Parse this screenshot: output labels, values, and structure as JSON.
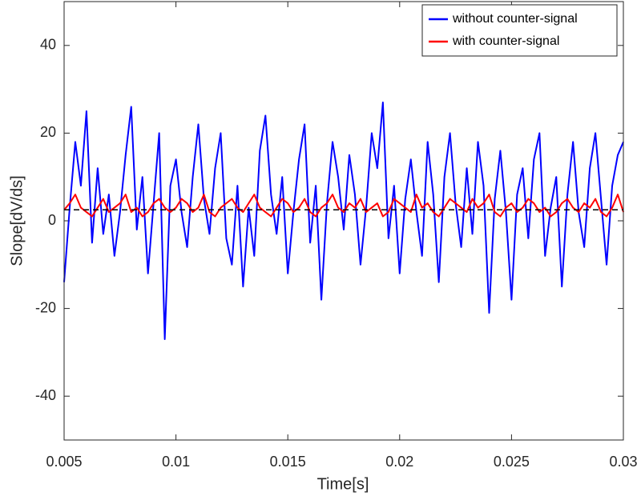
{
  "chart_data": {
    "type": "line",
    "xlabel": "Time[s]",
    "ylabel": "Slope[dV/ds]",
    "xlim": [
      0.005,
      0.03
    ],
    "xticks": [
      0.005,
      0.01,
      0.015,
      0.02,
      0.025,
      0.03
    ],
    "ylim": [
      -50,
      50
    ],
    "yticks": [
      -40,
      -20,
      0,
      20,
      40
    ],
    "legend": "upper right",
    "reference_line": 2.5,
    "x": [
      0.005,
      0.00525,
      0.0055,
      0.00575,
      0.006,
      0.00625,
      0.0065,
      0.00675,
      0.007,
      0.00725,
      0.0075,
      0.00775,
      0.008,
      0.00825,
      0.0085,
      0.00875,
      0.009,
      0.00925,
      0.0095,
      0.00975,
      0.01,
      0.01025,
      0.0105,
      0.01075,
      0.011,
      0.01125,
      0.0115,
      0.01175,
      0.012,
      0.01225,
      0.0125,
      0.01275,
      0.013,
      0.01325,
      0.0135,
      0.01375,
      0.014,
      0.01425,
      0.0145,
      0.01475,
      0.015,
      0.01525,
      0.0155,
      0.01575,
      0.016,
      0.01625,
      0.0165,
      0.01675,
      0.017,
      0.01725,
      0.0175,
      0.01775,
      0.018,
      0.01825,
      0.0185,
      0.01875,
      0.019,
      0.01925,
      0.0195,
      0.01975,
      0.02,
      0.02025,
      0.0205,
      0.02075,
      0.021,
      0.02125,
      0.0215,
      0.02175,
      0.022,
      0.02225,
      0.0225,
      0.02275,
      0.023,
      0.02325,
      0.0235,
      0.02375,
      0.024,
      0.02425,
      0.0245,
      0.02475,
      0.025,
      0.02525,
      0.0255,
      0.02575,
      0.026,
      0.02625,
      0.0265,
      0.02675,
      0.027,
      0.02725,
      0.0275,
      0.02775,
      0.028,
      0.02825,
      0.0285,
      0.02875,
      0.029,
      0.02925,
      0.0295,
      0.02975,
      0.03
    ],
    "series": [
      {
        "name": "without counter-signal",
        "color": "#0000ff",
        "values": [
          -14,
          3,
          18,
          8,
          25,
          -5,
          12,
          -3,
          6,
          -8,
          2,
          15,
          26,
          -2,
          10,
          -12,
          4,
          20,
          -27,
          8,
          14,
          2,
          -6,
          10,
          22,
          5,
          -3,
          12,
          20,
          -4,
          -10,
          8,
          -15,
          3,
          -8,
          16,
          24,
          6,
          -3,
          10,
          -12,
          2,
          14,
          22,
          -5,
          8,
          -18,
          4,
          18,
          10,
          -2,
          15,
          6,
          -10,
          3,
          20,
          12,
          27,
          -4,
          8,
          -12,
          5,
          14,
          2,
          -8,
          18,
          6,
          -14,
          10,
          20,
          4,
          -6,
          12,
          -3,
          18,
          8,
          -21,
          5,
          16,
          2,
          -18,
          6,
          12,
          -4,
          14,
          20,
          -8,
          3,
          10,
          -15,
          6,
          18,
          2,
          -6,
          12,
          20,
          5,
          -10,
          8,
          15,
          18
        ]
      },
      {
        "name": "with counter-signal",
        "color": "#ff0000",
        "values": [
          2.5,
          4,
          6,
          3,
          2,
          1,
          3,
          5,
          2,
          3,
          4,
          6,
          2,
          3,
          1,
          2,
          4,
          5,
          3,
          2,
          3,
          5,
          4,
          2,
          3,
          6,
          2,
          1,
          3,
          4,
          5,
          3,
          2,
          4,
          6,
          3,
          2,
          1,
          3,
          5,
          4,
          2,
          3,
          5,
          2,
          1,
          3,
          4,
          6,
          3,
          2,
          4,
          3,
          5,
          2,
          3,
          4,
          1,
          2,
          5,
          4,
          3,
          2,
          6,
          3,
          4,
          2,
          1,
          3,
          5,
          4,
          3,
          2,
          5,
          3,
          4,
          6,
          2,
          1,
          3,
          4,
          2,
          3,
          5,
          4,
          2,
          3,
          1,
          2,
          4,
          5,
          3,
          2,
          4,
          3,
          5,
          2,
          1,
          3,
          6,
          2
        ]
      }
    ]
  }
}
